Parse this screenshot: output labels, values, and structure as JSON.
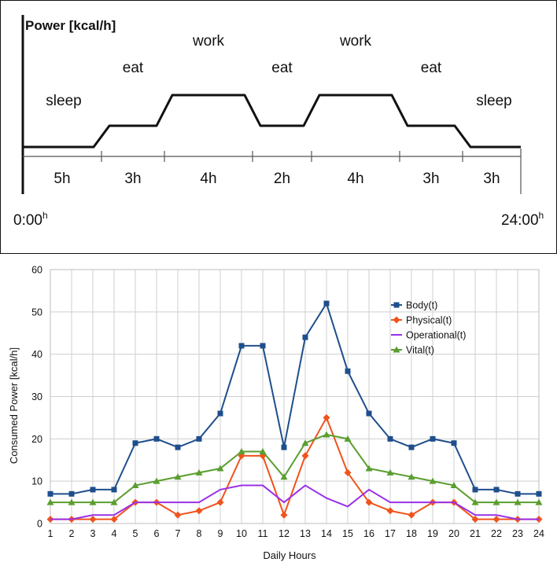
{
  "chart_data": [
    {
      "type": "line",
      "title": "",
      "ylabel": "Power [kcal/h]",
      "phases": [
        {
          "label": "sleep",
          "duration": "5h",
          "hours": 5,
          "level": 1
        },
        {
          "label": "eat",
          "duration": "3h",
          "hours": 3,
          "level": 2
        },
        {
          "label": "work",
          "duration": "4h",
          "hours": 4,
          "level": 3
        },
        {
          "label": "eat",
          "duration": "2h",
          "hours": 2,
          "level": 2
        },
        {
          "label": "work",
          "duration": "4h",
          "hours": 4,
          "level": 3
        },
        {
          "label": "eat",
          "duration": "3h",
          "hours": 3,
          "level": 2
        },
        {
          "label": "sleep",
          "duration": "3h",
          "hours": 3,
          "level": 1
        }
      ],
      "x_start": "0:00",
      "x_start_sup": "h",
      "x_end": "24:00",
      "x_end_sup": "h"
    },
    {
      "type": "line",
      "title": "",
      "xlabel": "Daily Hours",
      "ylabel": "Consumed Power [kcal/h]",
      "x": [
        1,
        2,
        3,
        4,
        5,
        6,
        7,
        8,
        9,
        10,
        11,
        12,
        13,
        14,
        15,
        16,
        17,
        18,
        19,
        20,
        21,
        22,
        23,
        24
      ],
      "xlim": [
        1,
        24
      ],
      "ylim": [
        0,
        60
      ],
      "yticks": [
        0,
        10,
        20,
        30,
        40,
        50,
        60
      ],
      "grid": true,
      "legend": "top-right",
      "series": [
        {
          "name": "Body(t)",
          "color": "#1f4e8c",
          "marker": "square",
          "values": [
            7,
            7,
            8,
            8,
            19,
            20,
            18,
            20,
            26,
            42,
            42,
            18,
            44,
            52,
            36,
            26,
            20,
            18,
            20,
            19,
            8,
            8,
            7,
            7
          ]
        },
        {
          "name": "Physical(t)",
          "color": "#f0531c",
          "marker": "diamond",
          "values": [
            1,
            1,
            1,
            1,
            5,
            5,
            2,
            3,
            5,
            16,
            16,
            2,
            16,
            25,
            12,
            5,
            3,
            2,
            5,
            5,
            1,
            1,
            1,
            1
          ]
        },
        {
          "name": "Operational(t)",
          "color": "#9b30e8",
          "marker": "none",
          "values": [
            1,
            1,
            2,
            2,
            5,
            5,
            5,
            5,
            8,
            9,
            9,
            5,
            9,
            6,
            4,
            8,
            5,
            5,
            5,
            5,
            2,
            2,
            1,
            1
          ]
        },
        {
          "name": "Vital(t)",
          "color": "#5a9e2f",
          "marker": "triangle",
          "values": [
            5,
            5,
            5,
            5,
            9,
            10,
            11,
            12,
            13,
            17,
            17,
            11,
            19,
            21,
            20,
            13,
            12,
            11,
            10,
            9,
            5,
            5,
            5,
            5
          ]
        }
      ]
    }
  ]
}
